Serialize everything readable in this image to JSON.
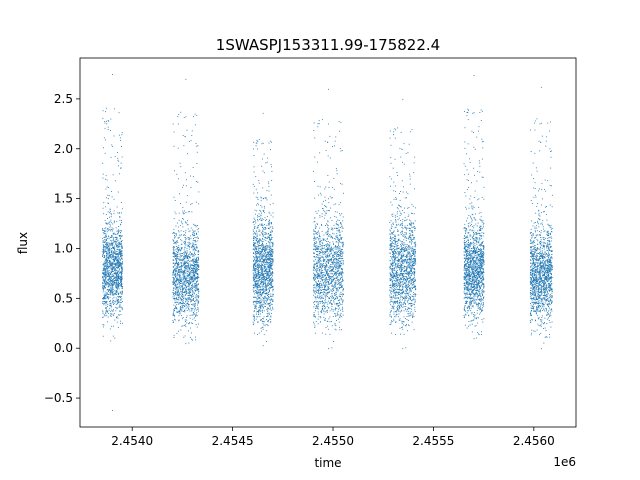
{
  "chart_data": {
    "type": "scatter",
    "title": "1SWASPJ153311.99-175822.4",
    "xlabel": "time",
    "ylabel": "flux",
    "x_offset_label": "1e6",
    "x_tick_labels": [
      "2.4540",
      "2.4545",
      "2.4550",
      "2.4555",
      "2.4560"
    ],
    "x_ticks": [
      2.454,
      2.4545,
      2.455,
      2.4555,
      2.456
    ],
    "y_ticks": [
      -0.5,
      0.0,
      0.5,
      1.0,
      1.5,
      2.0,
      2.5
    ],
    "y_tick_labels": [
      "−0.5",
      "0.0",
      "0.5",
      "1.0",
      "1.5",
      "2.0",
      "2.5"
    ],
    "xlim": [
      2.45374,
      2.45621
    ],
    "ylim": [
      -0.79,
      2.91
    ],
    "grid": false,
    "legend": "none",
    "marker_color": "#1f77b4",
    "series": [
      {
        "clusters": [
          {
            "x_range": [
              2.45385,
              2.45395
            ],
            "y_center": 0.8,
            "y_spread": 0.35,
            "y_min": -0.62,
            "y_max": 2.75
          },
          {
            "x_range": [
              2.4542,
              2.45433
            ],
            "y_center": 0.75,
            "y_spread": 0.35,
            "y_min": 0.05,
            "y_max": 2.7
          },
          {
            "x_range": [
              2.4546,
              2.4547
            ],
            "y_center": 0.8,
            "y_spread": 0.4,
            "y_min": 0.03,
            "y_max": 2.36
          },
          {
            "x_range": [
              2.4549,
              2.45505
            ],
            "y_center": 0.8,
            "y_spread": 0.4,
            "y_min": 0.0,
            "y_max": 2.6
          },
          {
            "x_range": [
              2.45528,
              2.45541
            ],
            "y_center": 0.8,
            "y_spread": 0.4,
            "y_min": 0.0,
            "y_max": 2.5
          },
          {
            "x_range": [
              2.45565,
              2.45575
            ],
            "y_center": 0.8,
            "y_spread": 0.35,
            "y_min": 0.1,
            "y_max": 2.74
          },
          {
            "x_range": [
              2.45598,
              2.45609
            ],
            "y_center": 0.75,
            "y_spread": 0.35,
            "y_min": 0.0,
            "y_max": 2.62
          }
        ]
      }
    ]
  }
}
